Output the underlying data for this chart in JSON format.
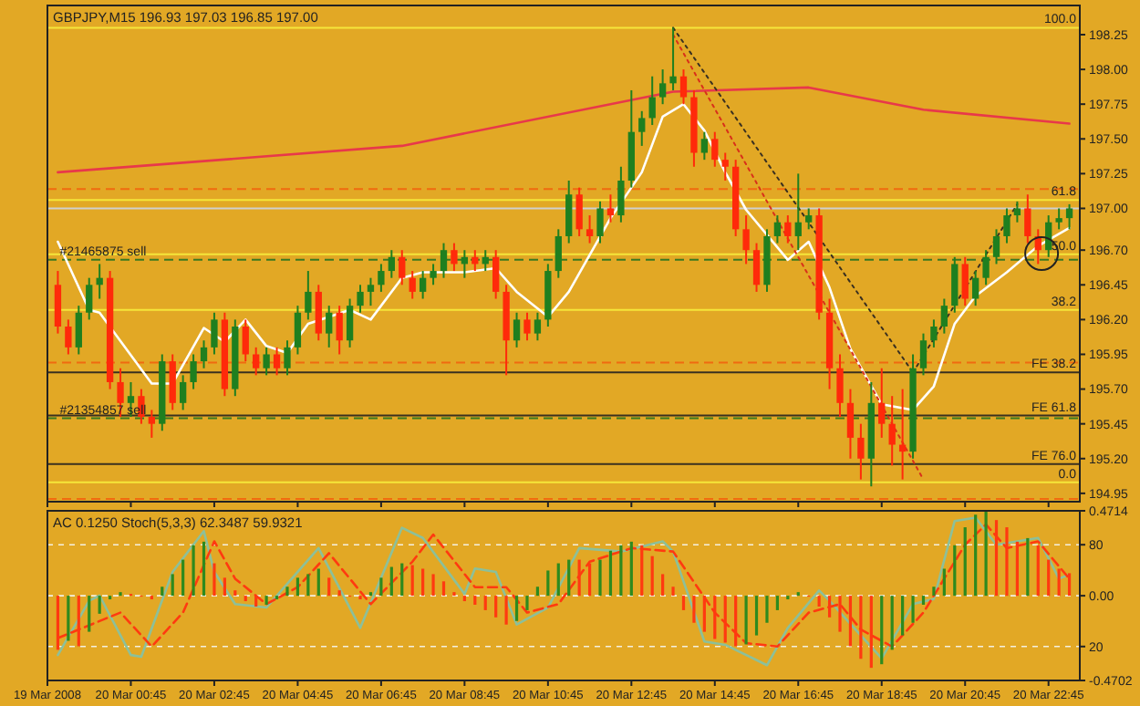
{
  "chart_data": [
    {
      "type": "candlestick",
      "title": "GBPJPY,M15  196.93 197.03 196.85 197.00",
      "tick_labels": "y",
      "x": [
        "2008-03-19T23:00",
        "2008-03-19T23:15",
        "2008-03-19T23:30",
        "2008-03-19T23:45",
        "2008-03-20T00:00",
        "2008-03-20T00:15",
        "2008-03-20T00:30",
        "2008-03-20T00:45",
        "2008-03-20T01:00",
        "2008-03-20T01:15",
        "2008-03-20T01:30",
        "2008-03-20T01:45",
        "2008-03-20T02:00",
        "2008-03-20T02:15",
        "2008-03-20T02:30",
        "2008-03-20T02:45",
        "2008-03-20T03:00",
        "2008-03-20T03:15",
        "2008-03-20T03:30",
        "2008-03-20T03:45",
        "2008-03-20T04:00",
        "2008-03-20T04:15",
        "2008-03-20T04:30",
        "2008-03-20T04:45",
        "2008-03-20T05:00",
        "2008-03-20T05:15",
        "2008-03-20T05:30",
        "2008-03-20T05:45",
        "2008-03-20T06:00",
        "2008-03-20T06:15",
        "2008-03-20T06:30",
        "2008-03-20T06:45",
        "2008-03-20T07:00",
        "2008-03-20T07:15",
        "2008-03-20T07:30",
        "2008-03-20T07:45",
        "2008-03-20T08:00",
        "2008-03-20T08:15",
        "2008-03-20T08:30",
        "2008-03-20T08:45",
        "2008-03-20T09:00",
        "2008-03-20T09:15",
        "2008-03-20T09:30",
        "2008-03-20T09:45",
        "2008-03-20T10:00",
        "2008-03-20T10:15",
        "2008-03-20T10:30",
        "2008-03-20T10:45",
        "2008-03-20T11:00",
        "2008-03-20T11:15",
        "2008-03-20T11:30",
        "2008-03-20T11:45",
        "2008-03-20T12:00",
        "2008-03-20T12:15",
        "2008-03-20T12:30",
        "2008-03-20T12:45",
        "2008-03-20T13:00",
        "2008-03-20T13:15",
        "2008-03-20T13:30",
        "2008-03-20T13:45",
        "2008-03-20T14:00",
        "2008-03-20T14:15",
        "2008-03-20T14:30",
        "2008-03-20T14:45",
        "2008-03-20T15:00",
        "2008-03-20T15:15",
        "2008-03-20T15:30",
        "2008-03-20T15:45",
        "2008-03-20T16:00",
        "2008-03-20T16:15",
        "2008-03-20T16:30",
        "2008-03-20T16:45",
        "2008-03-20T17:00",
        "2008-03-20T17:15",
        "2008-03-20T17:30",
        "2008-03-20T17:45",
        "2008-03-20T18:00",
        "2008-03-20T18:15",
        "2008-03-20T18:30",
        "2008-03-20T18:45",
        "2008-03-20T19:00",
        "2008-03-20T19:15",
        "2008-03-20T19:30",
        "2008-03-20T19:45",
        "2008-03-20T20:00",
        "2008-03-20T20:15",
        "2008-03-20T20:30",
        "2008-03-20T20:45",
        "2008-03-20T21:00",
        "2008-03-20T21:15",
        "2008-03-20T21:30",
        "2008-03-20T21:45",
        "2008-03-20T22:00",
        "2008-03-20T22:15",
        "2008-03-20T22:30",
        "2008-03-20T22:45",
        "2008-03-20T23:00",
        "2008-03-20T23:15"
      ],
      "ohlc": [
        [
          196.45,
          196.55,
          196.1,
          196.15
        ],
        [
          196.15,
          196.2,
          195.95,
          196.0
        ],
        [
          196.0,
          196.3,
          195.95,
          196.25
        ],
        [
          196.25,
          196.5,
          196.2,
          196.45
        ],
        [
          196.45,
          196.6,
          196.35,
          196.5
        ],
        [
          196.5,
          196.55,
          195.7,
          195.75
        ],
        [
          195.75,
          195.85,
          195.5,
          195.6
        ],
        [
          195.6,
          195.75,
          195.5,
          195.65
        ],
        [
          195.65,
          195.7,
          195.45,
          195.5
        ],
        [
          195.5,
          195.55,
          195.35,
          195.45
        ],
        [
          195.45,
          195.95,
          195.4,
          195.9
        ],
        [
          195.9,
          195.95,
          195.55,
          195.6
        ],
        [
          195.6,
          195.8,
          195.55,
          195.75
        ],
        [
          195.75,
          195.95,
          195.7,
          195.9
        ],
        [
          195.9,
          196.05,
          195.85,
          196.0
        ],
        [
          196.0,
          196.25,
          195.95,
          196.2
        ],
        [
          196.2,
          196.25,
          195.65,
          195.7
        ],
        [
          195.7,
          196.2,
          195.65,
          196.15
        ],
        [
          196.15,
          196.2,
          195.9,
          195.95
        ],
        [
          195.95,
          196.0,
          195.8,
          195.85
        ],
        [
          195.85,
          196.0,
          195.8,
          195.95
        ],
        [
          195.95,
          196.0,
          195.8,
          195.85
        ],
        [
          195.85,
          196.05,
          195.8,
          196.0
        ],
        [
          196.0,
          196.3,
          195.95,
          196.25
        ],
        [
          196.25,
          196.55,
          196.2,
          196.4
        ],
        [
          196.4,
          196.45,
          196.05,
          196.1
        ],
        [
          196.1,
          196.3,
          196.0,
          196.25
        ],
        [
          196.25,
          196.3,
          195.95,
          196.05
        ],
        [
          196.05,
          196.35,
          196.0,
          196.3
        ],
        [
          196.3,
          196.45,
          196.25,
          196.4
        ],
        [
          196.4,
          196.5,
          196.3,
          196.45
        ],
        [
          196.45,
          196.6,
          196.4,
          196.55
        ],
        [
          196.55,
          196.7,
          196.5,
          196.65
        ],
        [
          196.65,
          196.7,
          196.45,
          196.5
        ],
        [
          196.5,
          196.55,
          196.35,
          196.4
        ],
        [
          196.4,
          196.55,
          196.35,
          196.5
        ],
        [
          196.5,
          196.6,
          196.45,
          196.55
        ],
        [
          196.55,
          196.75,
          196.5,
          196.7
        ],
        [
          196.7,
          196.75,
          196.55,
          196.6
        ],
        [
          196.6,
          196.7,
          196.5,
          196.65
        ],
        [
          196.65,
          196.7,
          196.55,
          196.6
        ],
        [
          196.6,
          196.7,
          196.55,
          196.65
        ],
        [
          196.65,
          196.7,
          196.35,
          196.4
        ],
        [
          196.4,
          196.45,
          195.8,
          196.05
        ],
        [
          196.05,
          196.25,
          196.0,
          196.2
        ],
        [
          196.2,
          196.25,
          196.05,
          196.1
        ],
        [
          196.1,
          196.25,
          196.05,
          196.2
        ],
        [
          196.2,
          196.6,
          196.15,
          196.55
        ],
        [
          196.55,
          196.85,
          196.5,
          196.8
        ],
        [
          196.8,
          197.2,
          196.75,
          197.1
        ],
        [
          197.1,
          197.15,
          196.8,
          196.85
        ],
        [
          196.85,
          196.95,
          196.75,
          196.8
        ],
        [
          196.8,
          197.05,
          196.75,
          197.0
        ],
        [
          197.0,
          197.1,
          196.9,
          196.95
        ],
        [
          196.95,
          197.3,
          196.9,
          197.2
        ],
        [
          197.2,
          197.85,
          197.15,
          197.55
        ],
        [
          197.55,
          197.7,
          197.45,
          197.65
        ],
        [
          197.65,
          197.95,
          197.6,
          197.8
        ],
        [
          197.8,
          198.0,
          197.75,
          197.9
        ],
        [
          197.9,
          198.3,
          197.85,
          197.95
        ],
        [
          197.95,
          198.0,
          197.75,
          197.8
        ],
        [
          197.8,
          197.85,
          197.3,
          197.4
        ],
        [
          197.4,
          197.55,
          197.35,
          197.5
        ],
        [
          197.5,
          197.55,
          197.3,
          197.35
        ],
        [
          197.35,
          197.4,
          197.2,
          197.3
        ],
        [
          197.3,
          197.35,
          196.8,
          196.85
        ],
        [
          196.85,
          196.95,
          196.6,
          196.7
        ],
        [
          196.7,
          196.75,
          196.4,
          196.45
        ],
        [
          196.45,
          196.85,
          196.4,
          196.8
        ],
        [
          196.8,
          196.95,
          196.75,
          196.9
        ],
        [
          196.9,
          196.95,
          196.75,
          196.8
        ],
        [
          196.8,
          197.25,
          196.7,
          196.9
        ],
        [
          196.9,
          197.0,
          196.85,
          196.95
        ],
        [
          196.95,
          197.0,
          196.2,
          196.25
        ],
        [
          196.25,
          196.35,
          195.7,
          195.85
        ],
        [
          195.85,
          195.95,
          195.5,
          195.6
        ],
        [
          195.6,
          195.7,
          195.2,
          195.35
        ],
        [
          195.35,
          195.45,
          195.05,
          195.2
        ],
        [
          195.2,
          195.75,
          195.0,
          195.6
        ],
        [
          195.6,
          195.85,
          195.35,
          195.45
        ],
        [
          195.45,
          195.65,
          195.15,
          195.3
        ],
        [
          195.3,
          195.7,
          195.05,
          195.25
        ],
        [
          195.25,
          195.95,
          195.2,
          195.85
        ],
        [
          195.85,
          196.1,
          195.8,
          196.05
        ],
        [
          196.05,
          196.2,
          196.0,
          196.15
        ],
        [
          196.15,
          196.35,
          196.1,
          196.3
        ],
        [
          196.3,
          196.65,
          196.25,
          196.6
        ],
        [
          196.6,
          196.65,
          196.3,
          196.35
        ],
        [
          196.35,
          196.55,
          196.3,
          196.5
        ],
        [
          196.5,
          196.7,
          196.45,
          196.65
        ],
        [
          196.65,
          196.85,
          196.6,
          196.8
        ],
        [
          196.8,
          197.0,
          196.75,
          196.95
        ],
        [
          196.95,
          197.05,
          196.9,
          197.0
        ],
        [
          197.0,
          197.1,
          196.75,
          196.8
        ],
        [
          196.8,
          196.85,
          196.6,
          196.7
        ],
        [
          196.7,
          196.95,
          196.65,
          196.9
        ],
        [
          196.9,
          197.0,
          196.85,
          196.93
        ],
        [
          196.93,
          197.03,
          196.85,
          197.0
        ]
      ],
      "colors": [
        "#ff2a0a",
        "#ff2a0a",
        "#1f7f1f",
        "#1f7f1f",
        "#1f7f1f",
        "#ff2a0a",
        "#ff2a0a",
        "#1f7f1f",
        "#ff2a0a",
        "#ff2a0a",
        "#1f7f1f",
        "#ff2a0a",
        "#1f7f1f",
        "#1f7f1f",
        "#1f7f1f",
        "#1f7f1f",
        "#ff2a0a",
        "#1f7f1f",
        "#ff2a0a",
        "#ff2a0a",
        "#1f7f1f",
        "#ff2a0a",
        "#1f7f1f",
        "#1f7f1f",
        "#1f7f1f",
        "#ff2a0a",
        "#1f7f1f",
        "#ff2a0a",
        "#1f7f1f",
        "#1f7f1f",
        "#1f7f1f",
        "#1f7f1f",
        "#1f7f1f",
        "#ff2a0a",
        "#ff2a0a",
        "#1f7f1f",
        "#1f7f1f",
        "#1f7f1f",
        "#ff2a0a",
        "#1f7f1f",
        "#ff2a0a",
        "#1f7f1f",
        "#ff2a0a",
        "#ff2a0a",
        "#1f7f1f",
        "#ff2a0a",
        "#1f7f1f",
        "#1f7f1f",
        "#1f7f1f",
        "#1f7f1f",
        "#ff2a0a",
        "#ff2a0a",
        "#1f7f1f",
        "#ff2a0a",
        "#1f7f1f",
        "#1f7f1f",
        "#1f7f1f",
        "#1f7f1f",
        "#1f7f1f",
        "#1f7f1f",
        "#ff2a0a",
        "#ff2a0a",
        "#1f7f1f",
        "#ff2a0a",
        "#ff2a0a",
        "#ff2a0a",
        "#ff2a0a",
        "#ff2a0a",
        "#1f7f1f",
        "#1f7f1f",
        "#ff2a0a",
        "#1f7f1f",
        "#1f7f1f",
        "#ff2a0a",
        "#ff2a0a",
        "#ff2a0a",
        "#ff2a0a",
        "#ff2a0a",
        "#1f7f1f",
        "#ff2a0a",
        "#ff2a0a",
        "#ff2a0a",
        "#1f7f1f",
        "#1f7f1f",
        "#1f7f1f",
        "#1f7f1f",
        "#1f7f1f",
        "#ff2a0a",
        "#1f7f1f",
        "#1f7f1f",
        "#1f7f1f",
        "#1f7f1f",
        "#1f7f1f",
        "#ff2a0a",
        "#ff2a0a",
        "#1f7f1f",
        "#1f7f1f",
        "#1f7f1f"
      ],
      "series": [
        {
          "type": "line",
          "color": "#ffffff",
          "x": [
            "2008-03-19T23:00",
            "2008-03-19T23:45",
            "2008-03-20T00:00",
            "2008-03-20T01:15",
            "2008-03-20T01:45",
            "2008-03-20T02:30",
            "2008-03-20T03:00",
            "2008-03-20T03:30",
            "2008-03-20T04:00",
            "2008-03-20T04:30",
            "2008-03-20T05:00",
            "2008-03-20T06:00",
            "2008-03-20T06:30",
            "2008-03-20T07:15",
            "2008-03-20T07:45",
            "2008-03-20T08:45",
            "2008-03-20T09:30",
            "2008-03-20T10:00",
            "2008-03-20T10:45",
            "2008-03-20T11:15",
            "2008-03-20T12:15",
            "2008-03-20T13:00",
            "2008-03-20T13:30",
            "2008-03-20T14:00",
            "2008-03-20T14:30",
            "2008-03-20T15:00",
            "2008-03-20T15:30",
            "2008-03-20T16:30",
            "2008-03-20T17:00",
            "2008-03-20T17:30",
            "2008-03-20T18:00",
            "2008-03-20T18:45",
            "2008-03-20T19:30",
            "2008-03-20T20:00",
            "2008-03-20T20:30",
            "2008-03-20T21:00",
            "2008-03-20T21:45",
            "2008-03-20T22:30",
            "2008-03-20T23:15"
          ],
          "values": [
            196.76,
            196.27,
            196.25,
            195.74,
            195.74,
            196.14,
            196.04,
            196.2,
            196.01,
            195.96,
            196.17,
            196.27,
            196.2,
            196.5,
            196.54,
            196.54,
            196.57,
            196.4,
            196.22,
            196.4,
            196.93,
            197.26,
            197.66,
            197.75,
            197.56,
            197.26,
            196.99,
            196.63,
            196.76,
            196.43,
            195.99,
            195.59,
            195.55,
            195.72,
            196.17,
            196.37,
            196.54,
            196.73,
            196.86
          ]
        },
        {
          "type": "line",
          "color": "#e8384a",
          "x": [
            "2008-03-19T23:00",
            "2008-03-20T07:15",
            "2008-03-20T13:45",
            "2008-03-20T17:00",
            "2008-03-20T19:45",
            "2008-03-20T23:15"
          ],
          "values": [
            197.26,
            197.45,
            197.84,
            197.87,
            197.71,
            197.61
          ]
        },
        {
          "type": "line",
          "color": "#3a3020",
          "line_style": "dotted",
          "x": [
            "2008-03-20T13:45",
            "2008-03-20T19:30"
          ],
          "values": [
            198.3,
            195.82
          ]
        },
        {
          "type": "line",
          "color": "#d8301a",
          "line_style": "dotted",
          "x": [
            "2008-03-20T13:45",
            "2008-03-20T19:45"
          ],
          "values": [
            198.25,
            195.05
          ]
        },
        {
          "type": "line",
          "color": "#3a3020",
          "line_style": "dotted",
          "x": [
            "2008-03-20T19:30",
            "2008-03-20T22:00"
          ],
          "values": [
            195.82,
            197.03
          ]
        }
      ],
      "xlim": [
        "2008-03-19T22:45",
        "2008-03-20T23:30"
      ],
      "xticks": [
        {
          "value": "2008-03-19T22:45",
          "label": null
        },
        {
          "value": "2008-03-20T00:45",
          "label": null
        },
        {
          "value": "2008-03-20T02:45",
          "label": null
        },
        {
          "value": "2008-03-20T04:45",
          "label": null
        },
        {
          "value": "2008-03-20T06:45",
          "label": null
        },
        {
          "value": "2008-03-20T08:45",
          "label": null
        },
        {
          "value": "2008-03-20T10:45",
          "label": null
        },
        {
          "value": "2008-03-20T12:45",
          "label": null
        },
        {
          "value": "2008-03-20T14:45",
          "label": null
        },
        {
          "value": "2008-03-20T16:45",
          "label": null
        },
        {
          "value": "2008-03-20T18:45",
          "label": null
        },
        {
          "value": "2008-03-20T20:45",
          "label": null
        },
        {
          "value": "2008-03-20T22:45",
          "label": null
        }
      ],
      "ylim": [
        194.89,
        198.46
      ],
      "yticks": [
        198.25,
        {
          "value": 198,
          "label": "198.00"
        },
        197.75,
        {
          "value": 197.5,
          "label": "197.50"
        },
        197.25,
        {
          "value": 197,
          "label": "197.00"
        },
        {
          "value": 196.7,
          "label": "196.70"
        },
        196.45,
        {
          "value": 196.2,
          "label": "196.20"
        },
        195.95,
        {
          "value": 195.7,
          "label": "195.70"
        },
        195.45,
        {
          "value": 195.2,
          "label": "195.20"
        },
        194.95
      ],
      "ref_lines": [
        {
          "axis": "y",
          "value": 198.3,
          "color": "#f5e63a",
          "line_style": "solid"
        },
        {
          "axis": "y",
          "value": 197.06,
          "color": "#f5e63a",
          "line_style": "solid"
        },
        {
          "axis": "y",
          "value": 196.67,
          "color": "#f5e63a",
          "line_style": "solid"
        },
        {
          "axis": "y",
          "value": 196.27,
          "color": "#f5e63a",
          "line_style": "solid"
        },
        {
          "axis": "y",
          "value": 195.03,
          "color": "#f5e63a",
          "line_style": "solid"
        },
        {
          "axis": "y",
          "value": 195.82,
          "color": "#3a3020",
          "line_style": "solid"
        },
        {
          "axis": "y",
          "value": 195.51,
          "color": "#3a3020",
          "line_style": "solid"
        },
        {
          "axis": "y",
          "value": 195.16,
          "color": "#3a3020",
          "line_style": "solid"
        },
        {
          "axis": "y",
          "value": 197.14,
          "color": "#f06a10",
          "line_style": "dashed"
        },
        {
          "axis": "y",
          "value": 195.89,
          "color": "#f06a10",
          "line_style": "dashed"
        },
        {
          "axis": "y",
          "value": 194.91,
          "color": "#f06a10",
          "line_style": "dashed"
        },
        {
          "axis": "y",
          "value": 196.63,
          "color": "#3a7a20",
          "line_style": "dashed"
        },
        {
          "axis": "y",
          "value": 195.49,
          "color": "#3a7a20",
          "line_style": "dashed"
        },
        {
          "axis": "y",
          "value": 197.0,
          "color": "#cfcfcf",
          "line_style": "solid"
        }
      ],
      "annotations": [
        {
          "text": "#21465875 sell",
          "x": "2008-03-19T23:00",
          "y": 196.63
        },
        {
          "text": "#21354857 sell",
          "x": "2008-03-19T23:00",
          "y": 195.49
        },
        {
          "text": "100.0",
          "x": "2008-03-20T23:30",
          "y": 198.3
        },
        {
          "text": "61.8",
          "x": "2008-03-20T23:30",
          "y": 197.06
        },
        {
          "text": "50.0",
          "x": "2008-03-20T23:30",
          "y": 196.67
        },
        {
          "text": "38.2",
          "x": "2008-03-20T23:30",
          "y": 196.27
        },
        {
          "text": "0.0",
          "x": "2008-03-20T23:30",
          "y": 195.03
        },
        {
          "text": "FE 38.2",
          "x": "2008-03-20T23:30",
          "y": 195.82
        },
        {
          "text": "FE 61.8",
          "x": "2008-03-20T23:30",
          "y": 195.51
        },
        {
          "text": "FE 76.0",
          "x": "2008-03-20T23:30",
          "y": 195.16
        }
      ]
    },
    {
      "type": "bar",
      "title": "AC 0.1250  Stoch(5,3,3) 62.3487 59.9321",
      "grid": "y",
      "x": [
        "2008-03-19T23:00",
        "2008-03-19T23:15",
        "2008-03-19T23:30",
        "2008-03-19T23:45",
        "2008-03-20T00:00",
        "2008-03-20T00:15",
        "2008-03-20T00:30",
        "2008-03-20T00:45",
        "2008-03-20T01:00",
        "2008-03-20T01:15",
        "2008-03-20T01:30",
        "2008-03-20T01:45",
        "2008-03-20T02:00",
        "2008-03-20T02:15",
        "2008-03-20T02:30",
        "2008-03-20T02:45",
        "2008-03-20T03:00",
        "2008-03-20T03:15",
        "2008-03-20T03:30",
        "2008-03-20T03:45",
        "2008-03-20T04:00",
        "2008-03-20T04:15",
        "2008-03-20T04:30",
        "2008-03-20T04:45",
        "2008-03-20T05:00",
        "2008-03-20T05:15",
        "2008-03-20T05:30",
        "2008-03-20T05:45",
        "2008-03-20T06:00",
        "2008-03-20T06:15",
        "2008-03-20T06:30",
        "2008-03-20T06:45",
        "2008-03-20T07:00",
        "2008-03-20T07:15",
        "2008-03-20T07:30",
        "2008-03-20T07:45",
        "2008-03-20T08:00",
        "2008-03-20T08:15",
        "2008-03-20T08:30",
        "2008-03-20T08:45",
        "2008-03-20T09:00",
        "2008-03-20T09:15",
        "2008-03-20T09:30",
        "2008-03-20T09:45",
        "2008-03-20T10:00",
        "2008-03-20T10:15",
        "2008-03-20T10:30",
        "2008-03-20T10:45",
        "2008-03-20T11:00",
        "2008-03-20T11:15",
        "2008-03-20T11:30",
        "2008-03-20T11:45",
        "2008-03-20T12:00",
        "2008-03-20T12:15",
        "2008-03-20T12:30",
        "2008-03-20T12:45",
        "2008-03-20T13:00",
        "2008-03-20T13:15",
        "2008-03-20T13:30",
        "2008-03-20T13:45",
        "2008-03-20T14:00",
        "2008-03-20T14:15",
        "2008-03-20T14:30",
        "2008-03-20T14:45",
        "2008-03-20T15:00",
        "2008-03-20T15:15",
        "2008-03-20T15:30",
        "2008-03-20T15:45",
        "2008-03-20T16:00",
        "2008-03-20T16:15",
        "2008-03-20T16:30",
        "2008-03-20T16:45",
        "2008-03-20T17:00",
        "2008-03-20T17:15",
        "2008-03-20T17:30",
        "2008-03-20T17:45",
        "2008-03-20T18:00",
        "2008-03-20T18:15",
        "2008-03-20T18:30",
        "2008-03-20T18:45",
        "2008-03-20T19:00",
        "2008-03-20T19:15",
        "2008-03-20T19:30",
        "2008-03-20T19:45",
        "2008-03-20T20:00",
        "2008-03-20T20:15",
        "2008-03-20T20:30",
        "2008-03-20T20:45",
        "2008-03-20T21:00",
        "2008-03-20T21:15",
        "2008-03-20T21:30",
        "2008-03-20T21:45",
        "2008-03-20T22:00",
        "2008-03-20T22:15",
        "2008-03-20T22:30",
        "2008-03-20T22:45",
        "2008-03-20T23:00",
        "2008-03-20T23:15"
      ],
      "values": [
        -0.3,
        -0.25,
        -0.28,
        -0.2,
        -0.1,
        -0.02,
        0.02,
        0.01,
        0.0,
        -0.02,
        0.05,
        0.12,
        0.2,
        0.28,
        0.3,
        0.18,
        0.1,
        0.03,
        -0.03,
        -0.06,
        -0.05,
        -0.02,
        0.05,
        0.1,
        0.12,
        0.15,
        0.1,
        0.03,
        0.0,
        -0.02,
        0.02,
        0.1,
        0.16,
        0.18,
        0.17,
        0.15,
        0.12,
        0.08,
        0.02,
        -0.03,
        -0.05,
        -0.08,
        -0.12,
        -0.16,
        -0.14,
        -0.08,
        0.05,
        0.14,
        0.18,
        0.2,
        0.2,
        0.18,
        0.2,
        0.25,
        0.28,
        0.3,
        0.28,
        0.22,
        0.12,
        0.05,
        -0.08,
        -0.15,
        -0.2,
        -0.24,
        -0.26,
        -0.28,
        -0.27,
        -0.22,
        -0.15,
        -0.08,
        -0.02,
        0.02,
        0.0,
        -0.06,
        -0.12,
        -0.2,
        -0.28,
        -0.35,
        -0.4,
        -0.38,
        -0.3,
        -0.22,
        -0.15,
        -0.05,
        0.05,
        0.15,
        0.28,
        0.38,
        0.45,
        0.47,
        0.42,
        0.38,
        0.3,
        0.32,
        0.28,
        0.2,
        0.15,
        0.125
      ],
      "colors": [
        "#ff3a10",
        "#2e8a1e",
        "#ff3a10",
        "#2e8a1e",
        "#2e8a1e",
        "#2e8a1e",
        "#2e8a1e",
        "#ff3a10",
        "#ff3a10",
        "#ff3a10",
        "#2e8a1e",
        "#2e8a1e",
        "#2e8a1e",
        "#2e8a1e",
        "#2e8a1e",
        "#ff3a10",
        "#ff3a10",
        "#ff3a10",
        "#ff3a10",
        "#ff3a10",
        "#2e8a1e",
        "#2e8a1e",
        "#2e8a1e",
        "#2e8a1e",
        "#2e8a1e",
        "#2e8a1e",
        "#ff3a10",
        "#ff3a10",
        "#ff3a10",
        "#ff3a10",
        "#2e8a1e",
        "#2e8a1e",
        "#2e8a1e",
        "#2e8a1e",
        "#ff3a10",
        "#ff3a10",
        "#ff3a10",
        "#ff3a10",
        "#ff3a10",
        "#ff3a10",
        "#ff3a10",
        "#ff3a10",
        "#ff3a10",
        "#ff3a10",
        "#2e8a1e",
        "#2e8a1e",
        "#2e8a1e",
        "#2e8a1e",
        "#2e8a1e",
        "#2e8a1e",
        "#ff3a10",
        "#ff3a10",
        "#2e8a1e",
        "#2e8a1e",
        "#2e8a1e",
        "#2e8a1e",
        "#ff3a10",
        "#ff3a10",
        "#ff3a10",
        "#ff3a10",
        "#ff3a10",
        "#ff3a10",
        "#ff3a10",
        "#ff3a10",
        "#ff3a10",
        "#ff3a10",
        "#2e8a1e",
        "#2e8a1e",
        "#2e8a1e",
        "#2e8a1e",
        "#2e8a1e",
        "#2e8a1e",
        "#ff3a10",
        "#ff3a10",
        "#ff3a10",
        "#ff3a10",
        "#ff3a10",
        "#ff3a10",
        "#ff3a10",
        "#2e8a1e",
        "#2e8a1e",
        "#2e8a1e",
        "#2e8a1e",
        "#2e8a1e",
        "#2e8a1e",
        "#2e8a1e",
        "#2e8a1e",
        "#2e8a1e",
        "#2e8a1e",
        "#2e8a1e",
        "#ff3a10",
        "#ff3a10",
        "#ff3a10",
        "#2e8a1e",
        "#ff3a10",
        "#ff3a10",
        "#ff3a10",
        "#ff3a10"
      ],
      "series": [
        {
          "type": "line",
          "axis": "y2",
          "color": "#8cc09a",
          "x": [
            "2008-03-19T23:00",
            "2008-03-19T23:45",
            "2008-03-20T00:00",
            "2008-03-20T00:45",
            "2008-03-20T01:00",
            "2008-03-20T01:45",
            "2008-03-20T02:30",
            "2008-03-20T02:45",
            "2008-03-20T03:15",
            "2008-03-20T04:00",
            "2008-03-20T05:15",
            "2008-03-20T06:15",
            "2008-03-20T07:15",
            "2008-03-20T07:45",
            "2008-03-20T08:45",
            "2008-03-20T09:00",
            "2008-03-20T09:30",
            "2008-03-20T10:00",
            "2008-03-20T10:45",
            "2008-03-20T11:30",
            "2008-03-20T12:30",
            "2008-03-20T13:30",
            "2008-03-20T13:45",
            "2008-03-20T14:30",
            "2008-03-20T15:00",
            "2008-03-20T16:00",
            "2008-03-20T16:30",
            "2008-03-20T17:15",
            "2008-03-20T17:30",
            "2008-03-20T18:45",
            "2008-03-20T19:30",
            "2008-03-20T20:00",
            "2008-03-20T20:30",
            "2008-03-20T21:00",
            "2008-03-20T21:30",
            "2008-03-20T22:30",
            "2008-03-20T23:00",
            "2008-03-20T23:15"
          ],
          "values": [
            15,
            47,
            50,
            15,
            14,
            64,
            88,
            64,
            45,
            43,
            78,
            31,
            90,
            84,
            51,
            66,
            64,
            33,
            43,
            78,
            76,
            82,
            76,
            23,
            21,
            9,
            31,
            53,
            47,
            13,
            45,
            48,
            94,
            96,
            80,
            84,
            60,
            62.35
          ]
        },
        {
          "type": "line",
          "axis": "y2",
          "color": "#ff3a10",
          "line_style": "dashed",
          "x": [
            "2008-03-19T23:00",
            "2008-03-20T00:00",
            "2008-03-20T00:30",
            "2008-03-20T01:15",
            "2008-03-20T02:00",
            "2008-03-20T02:45",
            "2008-03-20T03:15",
            "2008-03-20T04:00",
            "2008-03-20T04:45",
            "2008-03-20T05:30",
            "2008-03-20T06:30",
            "2008-03-20T07:30",
            "2008-03-20T08:00",
            "2008-03-20T09:00",
            "2008-03-20T09:45",
            "2008-03-20T10:15",
            "2008-03-20T11:00",
            "2008-03-20T11:45",
            "2008-03-20T12:45",
            "2008-03-20T13:45",
            "2008-03-20T14:45",
            "2008-03-20T15:30",
            "2008-03-20T16:15",
            "2008-03-20T17:00",
            "2008-03-20T17:45",
            "2008-03-20T18:15",
            "2008-03-20T19:00",
            "2008-03-20T19:45",
            "2008-03-20T20:45",
            "2008-03-20T21:15",
            "2008-03-20T21:45",
            "2008-03-20T22:30",
            "2008-03-20T23:15"
          ],
          "values": [
            25,
            35,
            40,
            20,
            40,
            82,
            60,
            45,
            55,
            75,
            45,
            70,
            86,
            55,
            55,
            40,
            45,
            70,
            78,
            76,
            40,
            22,
            20,
            40,
            45,
            30,
            20,
            40,
            80,
            92,
            78,
            82,
            59.93
          ]
        }
      ],
      "xlim": [
        "2008-03-19T22:45",
        "2008-03-20T23:30"
      ],
      "xticks": [
        {
          "value": "2008-03-19T22:45",
          "label": "19 Mar 2008"
        },
        {
          "value": "2008-03-20T00:45",
          "label": "20 Mar 00:45"
        },
        {
          "value": "2008-03-20T02:45",
          "label": "20 Mar 02:45"
        },
        {
          "value": "2008-03-20T04:45",
          "label": "20 Mar 04:45"
        },
        {
          "value": "2008-03-20T06:45",
          "label": "20 Mar 06:45"
        },
        {
          "value": "2008-03-20T08:45",
          "label": "20 Mar 08:45"
        },
        {
          "value": "2008-03-20T10:45",
          "label": "20 Mar 10:45"
        },
        {
          "value": "2008-03-20T12:45",
          "label": "20 Mar 12:45"
        },
        {
          "value": "2008-03-20T14:45",
          "label": "20 Mar 14:45"
        },
        {
          "value": "2008-03-20T16:45",
          "label": "20 Mar 16:45"
        },
        {
          "value": "2008-03-20T18:45",
          "label": "20 Mar 18:45"
        },
        {
          "value": "2008-03-20T20:45",
          "label": "20 Mar 20:45"
        },
        {
          "value": "2008-03-20T22:45",
          "label": "20 Mar 22:45"
        }
      ],
      "ylim": [
        -0.4702,
        0.4714
      ],
      "yticks": [
        0.4714,
        {
          "value": 0,
          "label": "0.00"
        },
        -0.4702
      ],
      "y2lim": [
        0,
        100
      ],
      "y2ticks": [
        20,
        80
      ]
    }
  ]
}
